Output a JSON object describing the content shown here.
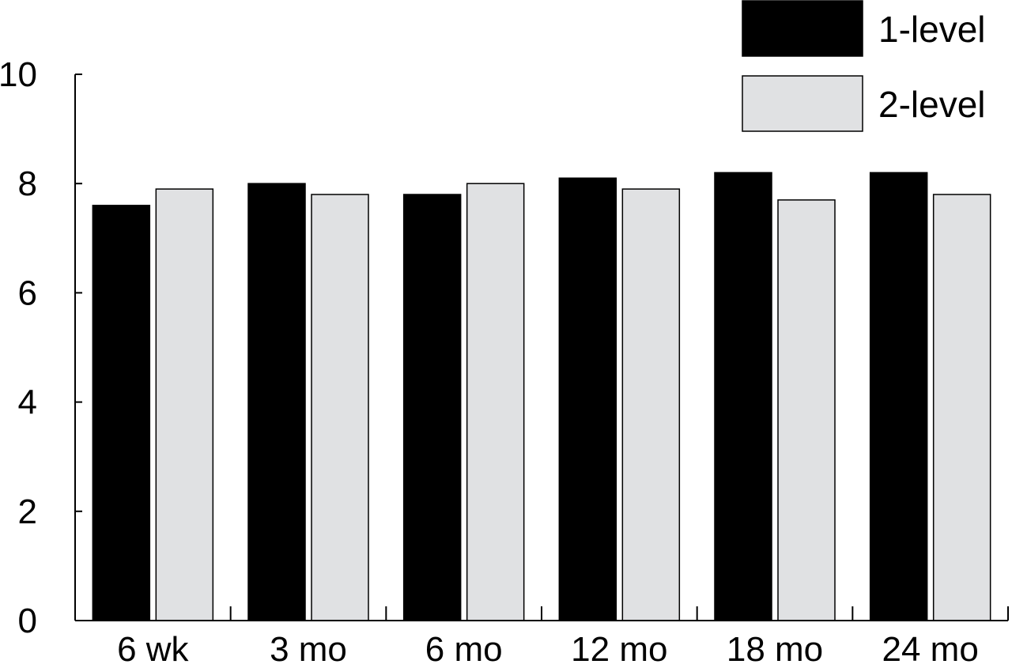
{
  "chart_data": {
    "type": "bar",
    "title": "",
    "xlabel": "",
    "ylabel": "",
    "categories": [
      "6 wk",
      "3 mo",
      "6 mo",
      "12 mo",
      "18 mo",
      "24 mo"
    ],
    "series": [
      {
        "name": "1-level",
        "color": "#000000",
        "values": [
          7.6,
          8.0,
          7.8,
          8.1,
          8.2,
          8.2
        ]
      },
      {
        "name": "2-level",
        "color": "#e0e1e3",
        "values": [
          7.9,
          7.8,
          8.0,
          7.9,
          7.7,
          7.8
        ]
      }
    ],
    "ylim": [
      0,
      10
    ],
    "yticks": [
      "0",
      "2",
      "4",
      "6",
      "8",
      "10"
    ],
    "grid": false,
    "legend_position": "top-right"
  }
}
